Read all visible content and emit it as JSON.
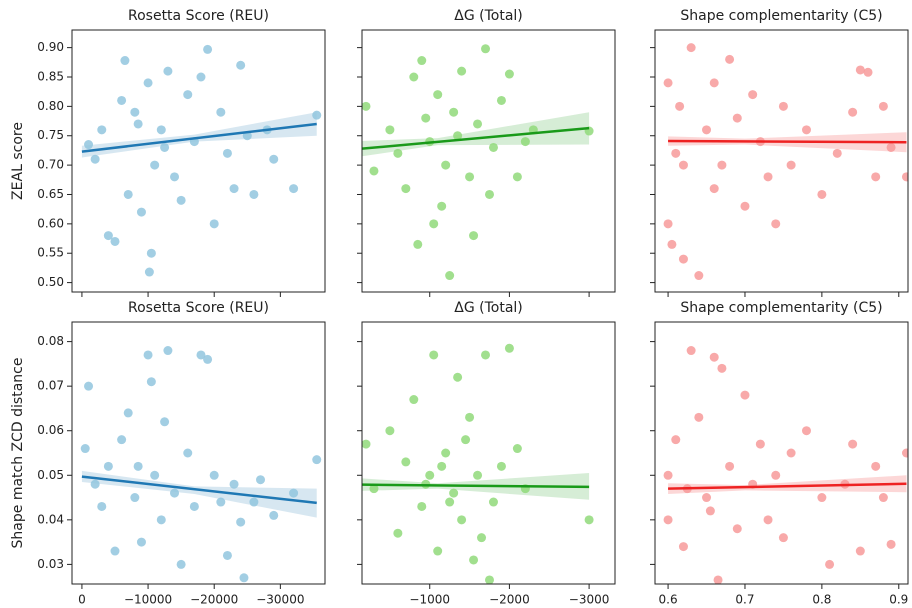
{
  "chart_data": [
    {
      "type": "scatter",
      "title": "Rosetta Score (REU)",
      "ylabel": "ZEAL score",
      "ylim": [
        0.484,
        0.93
      ],
      "yticks": [
        {
          "value": 0.5,
          "label": "0.50"
        },
        0.55,
        {
          "value": 0.6,
          "label": "0.60"
        },
        0.65,
        {
          "value": 0.7,
          "label": "0.70"
        },
        0.75,
        {
          "value": 0.8,
          "label": "0.80"
        },
        0.85,
        {
          "value": 0.9,
          "label": "0.90"
        }
      ],
      "color": "#92c5de",
      "x": [
        -1000,
        -2000,
        -3000,
        -4000,
        -5000,
        -6000,
        -6500,
        -7000,
        -8000,
        -9000,
        -10000,
        -10500,
        -11000,
        -12000,
        -13000,
        -14000,
        -15000,
        -16000,
        -17000,
        -18000,
        -19000,
        -20000,
        -21000,
        -22000,
        -23000,
        -24000,
        -25000,
        -26000,
        -28000,
        -29000,
        -32000,
        -35500,
        -10200,
        -12500,
        -8500
      ],
      "values": [
        0.735,
        0.71,
        0.76,
        0.58,
        0.57,
        0.81,
        0.878,
        0.65,
        0.79,
        0.62,
        0.84,
        0.55,
        0.7,
        0.76,
        0.86,
        0.68,
        0.64,
        0.82,
        0.74,
        0.85,
        0.897,
        0.6,
        0.79,
        0.72,
        0.66,
        0.87,
        0.75,
        0.65,
        0.76,
        0.71,
        0.66,
        0.785,
        0.518,
        0.73,
        0.77
      ],
      "fit": {
        "color": "#1f78b4",
        "x": [
          0,
          -35500
        ],
        "values": [
          0.723,
          0.77
        ]
      },
      "band": {
        "x": [
          0,
          -17000,
          -35500
        ],
        "lower": [
          0.713,
          0.74,
          0.75
        ],
        "upper": [
          0.733,
          0.752,
          0.79
        ]
      }
    },
    {
      "type": "scatter",
      "title": "ΔG (Total)",
      "color": "#90d97a",
      "x": [
        -200,
        -300,
        -500,
        -600,
        -700,
        -800,
        -850,
        -900,
        -1000,
        -1050,
        -1100,
        -1200,
        -1250,
        -1300,
        -1400,
        -1500,
        -1550,
        -1600,
        -1700,
        -1750,
        -1800,
        -1900,
        -2000,
        -2100,
        -2200,
        -2300,
        -3000,
        -950,
        -1150,
        -1350
      ],
      "values": [
        0.8,
        0.69,
        0.76,
        0.72,
        0.66,
        0.85,
        0.565,
        0.878,
        0.74,
        0.6,
        0.82,
        0.7,
        0.512,
        0.79,
        0.86,
        0.68,
        0.58,
        0.77,
        0.898,
        0.65,
        0.73,
        0.81,
        0.855,
        0.68,
        0.74,
        0.76,
        0.758,
        0.78,
        0.63,
        0.75
      ],
      "fit": {
        "color": "#1a9a1a",
        "x": [
          -150,
          -3000
        ],
        "values": [
          0.728,
          0.763
        ]
      },
      "band": {
        "x": [
          -150,
          -1100,
          -3000
        ],
        "lower": [
          0.715,
          0.734,
          0.735
        ],
        "upper": [
          0.741,
          0.746,
          0.79
        ]
      }
    },
    {
      "type": "scatter",
      "title": "Shape complementarity (C5)",
      "color": "#f79a9a",
      "x": [
        0.6,
        0.6,
        0.605,
        0.61,
        0.615,
        0.62,
        0.63,
        0.64,
        0.65,
        0.66,
        0.67,
        0.68,
        0.69,
        0.7,
        0.71,
        0.72,
        0.73,
        0.74,
        0.75,
        0.76,
        0.78,
        0.8,
        0.82,
        0.84,
        0.85,
        0.86,
        0.87,
        0.88,
        0.89,
        0.91,
        0.62,
        0.66
      ],
      "values": [
        0.84,
        0.6,
        0.565,
        0.72,
        0.8,
        0.54,
        0.9,
        0.512,
        0.76,
        0.66,
        0.7,
        0.88,
        0.78,
        0.63,
        0.82,
        0.74,
        0.68,
        0.6,
        0.8,
        0.7,
        0.76,
        0.65,
        0.72,
        0.79,
        0.862,
        0.858,
        0.68,
        0.8,
        0.73,
        0.68,
        0.7,
        0.84
      ],
      "fit": {
        "color": "#ee2222",
        "x": [
          0.6,
          0.91
        ],
        "values": [
          0.741,
          0.739
        ]
      },
      "band": {
        "x": [
          0.6,
          0.7,
          0.91
        ],
        "lower": [
          0.733,
          0.735,
          0.722
        ],
        "upper": [
          0.749,
          0.745,
          0.756
        ]
      }
    },
    {
      "type": "scatter",
      "title": "Rosetta Score (REU)",
      "ylabel": "Shape match ZCD distance",
      "ylim": [
        0.0256,
        0.0844
      ],
      "yticks": [
        {
          "value": 0.03,
          "label": "0.03"
        },
        {
          "value": 0.04,
          "label": "0.04"
        },
        {
          "value": 0.05,
          "label": "0.05"
        },
        {
          "value": 0.06,
          "label": "0.06"
        },
        {
          "value": 0.07,
          "label": "0.07"
        },
        {
          "value": 0.08,
          "label": "0.08"
        }
      ],
      "xlim": [
        1500,
        -36750
      ],
      "xticks": [
        0,
        {
          "value": -10000,
          "label": "−10000"
        },
        {
          "value": -20000,
          "label": "−20000"
        },
        {
          "value": -30000,
          "label": "−30000"
        }
      ],
      "color": "#92c5de",
      "x": [
        -500,
        -1000,
        -2000,
        -3000,
        -4000,
        -5000,
        -6000,
        -7000,
        -8000,
        -9000,
        -10000,
        -10500,
        -11000,
        -12000,
        -13000,
        -14000,
        -15000,
        -16000,
        -17000,
        -18000,
        -19000,
        -20000,
        -21000,
        -22000,
        -23000,
        -24000,
        -24500,
        -26000,
        -27000,
        -29000,
        -32000,
        -35500,
        -12500,
        -8500
      ],
      "values": [
        0.056,
        0.07,
        0.048,
        0.043,
        0.052,
        0.033,
        0.058,
        0.064,
        0.045,
        0.035,
        0.077,
        0.071,
        0.05,
        0.04,
        0.078,
        0.046,
        0.03,
        0.055,
        0.043,
        0.077,
        0.076,
        0.05,
        0.044,
        0.032,
        0.048,
        0.0395,
        0.027,
        0.044,
        0.049,
        0.041,
        0.046,
        0.0535,
        0.062,
        0.052
      ],
      "fit": {
        "color": "#1f78b4",
        "x": [
          0,
          -35500
        ],
        "values": [
          0.0497,
          0.0438
        ]
      },
      "band": {
        "x": [
          0,
          -17000,
          -35500
        ],
        "lower": [
          0.0485,
          0.0458,
          0.0405
        ],
        "upper": [
          0.051,
          0.0475,
          0.047
        ]
      }
    },
    {
      "type": "scatter",
      "title": "ΔG (Total)",
      "xlim": [
        -150,
        -3325
      ],
      "xticks": [
        {
          "value": -1000,
          "label": "−1000"
        },
        {
          "value": -2000,
          "label": "−2000"
        },
        {
          "value": -3000,
          "label": "−3000"
        }
      ],
      "color": "#90d97a",
      "x": [
        -200,
        -300,
        -500,
        -600,
        -700,
        -800,
        -900,
        -1000,
        -1050,
        -1100,
        -1200,
        -1300,
        -1350,
        -1400,
        -1500,
        -1550,
        -1600,
        -1700,
        -1750,
        -1800,
        -1900,
        -2000,
        -2100,
        -2200,
        -3000,
        -950,
        -1150,
        -1250,
        -1450,
        -1650
      ],
      "values": [
        0.057,
        0.047,
        0.06,
        0.037,
        0.053,
        0.067,
        0.043,
        0.05,
        0.077,
        0.033,
        0.055,
        0.046,
        0.072,
        0.04,
        0.063,
        0.031,
        0.05,
        0.077,
        0.0265,
        0.044,
        0.052,
        0.0785,
        0.056,
        0.047,
        0.04,
        0.048,
        0.052,
        0.044,
        0.058,
        0.036
      ],
      "fit": {
        "color": "#1a9a1a",
        "x": [
          -150,
          -3000
        ],
        "values": [
          0.0479,
          0.0474
        ]
      },
      "band": {
        "x": [
          -150,
          -1100,
          -3000
        ],
        "lower": [
          0.0465,
          0.047,
          0.0445
        ],
        "upper": [
          0.0493,
          0.0482,
          0.0505
        ]
      }
    },
    {
      "type": "scatter",
      "title": "Shape complementarity (C5)",
      "xlim": [
        0.583,
        0.912
      ],
      "xticks": [
        0.6,
        0.7,
        0.8,
        0.9
      ],
      "color": "#f79a9a",
      "x": [
        0.6,
        0.6,
        0.61,
        0.62,
        0.63,
        0.64,
        0.65,
        0.66,
        0.665,
        0.67,
        0.68,
        0.69,
        0.7,
        0.71,
        0.72,
        0.73,
        0.74,
        0.75,
        0.76,
        0.78,
        0.8,
        0.81,
        0.83,
        0.84,
        0.85,
        0.87,
        0.88,
        0.89,
        0.91,
        0.625,
        0.655
      ],
      "values": [
        0.05,
        0.04,
        0.058,
        0.034,
        0.078,
        0.063,
        0.045,
        0.0765,
        0.0265,
        0.074,
        0.052,
        0.038,
        0.068,
        0.048,
        0.057,
        0.04,
        0.05,
        0.036,
        0.055,
        0.06,
        0.045,
        0.03,
        0.048,
        0.057,
        0.033,
        0.052,
        0.045,
        0.0345,
        0.055,
        0.047,
        0.042
      ],
      "fit": {
        "color": "#ee2222",
        "x": [
          0.6,
          0.91
        ],
        "values": [
          0.047,
          0.0481
        ]
      },
      "band": {
        "x": [
          0.6,
          0.7,
          0.91
        ],
        "lower": [
          0.0458,
          0.0466,
          0.0462
        ],
        "upper": [
          0.0482,
          0.0478,
          0.05
        ]
      }
    }
  ]
}
